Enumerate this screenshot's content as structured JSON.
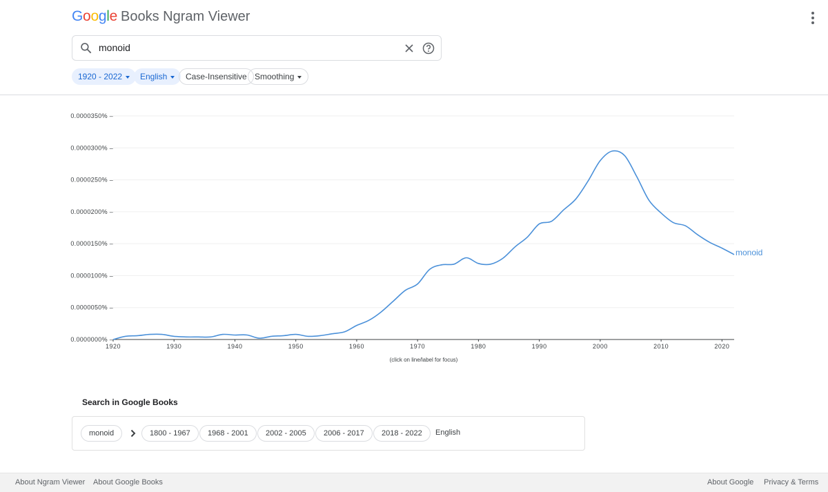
{
  "header": {
    "logo_letters": [
      "G",
      "o",
      "o",
      "g",
      "l",
      "e"
    ],
    "product_name": "Books Ngram Viewer",
    "menu_icon": "more-vert-icon"
  },
  "search": {
    "icon": "search-icon",
    "query": "monoid",
    "clear_icon": "close-icon",
    "help_icon": "help-icon"
  },
  "filters": {
    "year_range": "1920 - 2022",
    "corpus": "English",
    "case": "Case-Insensitive",
    "smoothing": "Smoothing"
  },
  "chart_data": {
    "type": "line",
    "x_range": [
      1920,
      2022
    ],
    "x_ticks": [
      "1920",
      "1930",
      "1940",
      "1950",
      "1960",
      "1970",
      "1980",
      "1990",
      "2000",
      "2010",
      "2020"
    ],
    "y_range": [
      0,
      3.5e-05
    ],
    "y_ticks": [
      "0.0000000%",
      "0.0000050%",
      "0.0000100%",
      "0.0000150%",
      "0.0000200%",
      "0.0000250%",
      "0.0000300%",
      "0.0000350%"
    ],
    "series": [
      {
        "name": "monoid",
        "color": "#4a90d9",
        "x": [
          1920,
          1922,
          1924,
          1926,
          1928,
          1930,
          1932,
          1934,
          1936,
          1938,
          1940,
          1942,
          1944,
          1946,
          1948,
          1950,
          1952,
          1954,
          1956,
          1958,
          1960,
          1962,
          1964,
          1966,
          1968,
          1970,
          1972,
          1974,
          1976,
          1978,
          1980,
          1982,
          1984,
          1986,
          1988,
          1990,
          1992,
          1994,
          1996,
          1998,
          2000,
          2002,
          2004,
          2006,
          2008,
          2010,
          2012,
          2014,
          2016,
          2018,
          2020,
          2022
        ],
        "values": [
          0.0,
          5e-07,
          6e-07,
          8e-07,
          8e-07,
          5e-07,
          4e-07,
          4e-07,
          4e-07,
          8e-07,
          7e-07,
          7e-07,
          2e-07,
          5e-07,
          6e-07,
          8e-07,
          5e-07,
          6e-07,
          9e-07,
          1.2e-06,
          2.2e-06,
          3e-06,
          4.3e-06,
          6e-06,
          7.7e-06,
          8.7e-06,
          1.1e-05,
          1.17e-05,
          1.18e-05,
          1.28e-05,
          1.19e-05,
          1.18e-05,
          1.27e-05,
          1.45e-05,
          1.6e-05,
          1.81e-05,
          1.85e-05,
          2.03e-05,
          2.2e-05,
          2.48e-05,
          2.8e-05,
          2.95e-05,
          2.88e-05,
          2.55e-05,
          2.18e-05,
          1.98e-05,
          1.83e-05,
          1.78e-05,
          1.64e-05,
          1.52e-05,
          1.43e-05,
          1.33e-05
        ]
      }
    ],
    "hint": "(click on line/label for focus)"
  },
  "google_books": {
    "title": "Search in Google Books",
    "term": "monoid",
    "chevron_icon": "chevron-right-icon",
    "ranges": [
      "1800 - 1967",
      "1968 - 2001",
      "2002 - 2005",
      "2006 - 2017",
      "2018 - 2022"
    ],
    "language": "English"
  },
  "footer": {
    "about_ngram": "About Ngram Viewer",
    "about_books": "About Google Books",
    "about_google": "About Google",
    "privacy": "Privacy & Terms"
  }
}
